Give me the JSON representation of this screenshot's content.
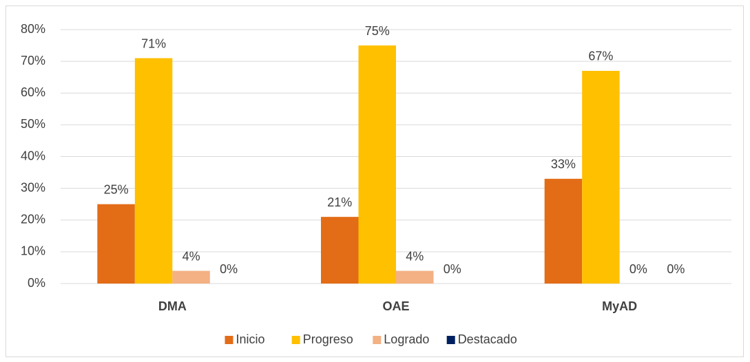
{
  "chart_data": {
    "type": "bar",
    "categories": [
      "DMA",
      "OAE",
      "MyAD"
    ],
    "series": [
      {
        "name": "Inicio",
        "color": "#e36c17",
        "values": [
          25,
          21,
          33
        ],
        "value_labels": [
          "25%",
          "21%",
          "33%"
        ]
      },
      {
        "name": "Progreso",
        "color": "#ffc000",
        "values": [
          71,
          75,
          67
        ],
        "value_labels": [
          "71%",
          "75%",
          "67%"
        ]
      },
      {
        "name": "Logrado",
        "color": "#f4b183",
        "values": [
          4,
          4,
          0
        ],
        "value_labels": [
          "4%",
          "4%",
          "0%"
        ]
      },
      {
        "name": "Destacado",
        "color": "#002060",
        "values": [
          0,
          0,
          0
        ],
        "value_labels": [
          "0%",
          "0%",
          "0%"
        ]
      }
    ],
    "ylim": [
      0,
      80
    ],
    "yticks": [
      {
        "value": 0,
        "label": "0%"
      },
      {
        "value": 10,
        "label": "10%"
      },
      {
        "value": 20,
        "label": "20%"
      },
      {
        "value": 30,
        "label": "30%"
      },
      {
        "value": 40,
        "label": "40%"
      },
      {
        "value": 50,
        "label": "50%"
      },
      {
        "value": 60,
        "label": "60%"
      },
      {
        "value": 70,
        "label": "70%"
      },
      {
        "value": 80,
        "label": "80%"
      }
    ],
    "grid": true,
    "legend": "bottom"
  }
}
